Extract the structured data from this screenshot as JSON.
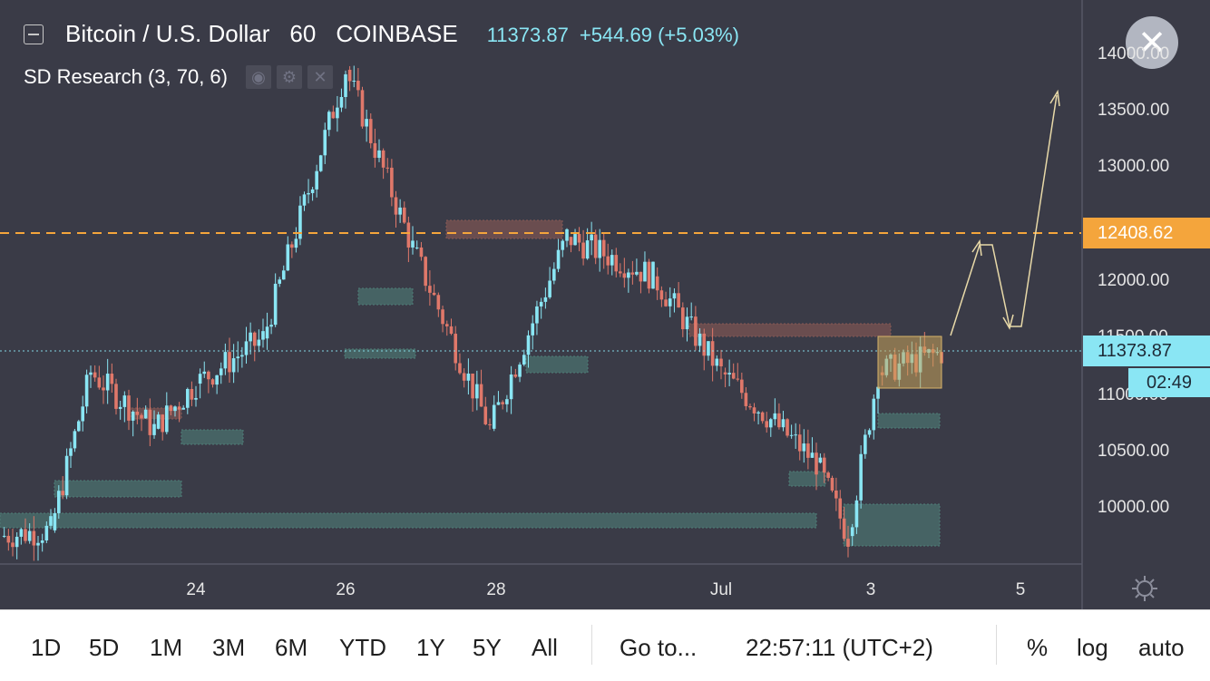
{
  "legend": {
    "symbol": "Bitcoin / U.S. Dollar",
    "interval": "60",
    "exchange": "COINBASE",
    "price": "11373.87",
    "change": "+544.69 (+5.03%)"
  },
  "indicator": {
    "label": "SD Research (3, 70, 6)",
    "eye_icon": "eye-icon",
    "gear_icon": "gear-icon",
    "close_icon": "close-icon"
  },
  "price_axis": {
    "labels": [
      "14000.00",
      "13500.00",
      "13000.00",
      "12000.00",
      "11500.00",
      "11000.00",
      "10500.00",
      "10000.00"
    ]
  },
  "time_axis": {
    "labels": [
      "24",
      "26",
      "28",
      "Jul",
      "3",
      "5"
    ]
  },
  "tags": {
    "orange_line": "12408.62",
    "last_price": "11373.87",
    "countdown": "02:49"
  },
  "colors": {
    "background": "#3a3b47",
    "up": "#8ae6f4",
    "down": "#e0786a",
    "orange": "#f4a53c",
    "zone_green": "#4e7f78",
    "zone_red": "#8a5a55"
  },
  "toolbar": {
    "ranges": [
      "1D",
      "5D",
      "1M",
      "3M",
      "6M",
      "YTD",
      "1Y",
      "5Y",
      "All"
    ],
    "goto_label": "Go to...",
    "time": "22:57:11 (UTC+2)",
    "percent": "%",
    "log": "log",
    "auto": "auto"
  },
  "chart_data": {
    "type": "candlestick",
    "ylim": [
      9600,
      14300
    ],
    "key_points": [
      {
        "x": "22",
        "y": 9800
      },
      {
        "x": "23",
        "y": 11200
      },
      {
        "x": "24",
        "y": 10700
      },
      {
        "x": "25",
        "y": 11100
      },
      {
        "x": "26",
        "y": 11500
      },
      {
        "x": "26",
        "y": 13880
      },
      {
        "x": "27",
        "y": 12300
      },
      {
        "x": "28",
        "y": 10700
      },
      {
        "x": "29",
        "y": 12400
      },
      {
        "x": "30",
        "y": 12050
      },
      {
        "x": "Jul",
        "y": 11200
      },
      {
        "x": "2",
        "y": 10400
      },
      {
        "x": "2",
        "y": 9750
      },
      {
        "x": "3",
        "y": 11200
      },
      {
        "x": "3",
        "y": 11373.87
      }
    ],
    "last_price": 11373.87,
    "orange_level": 12408.62
  }
}
